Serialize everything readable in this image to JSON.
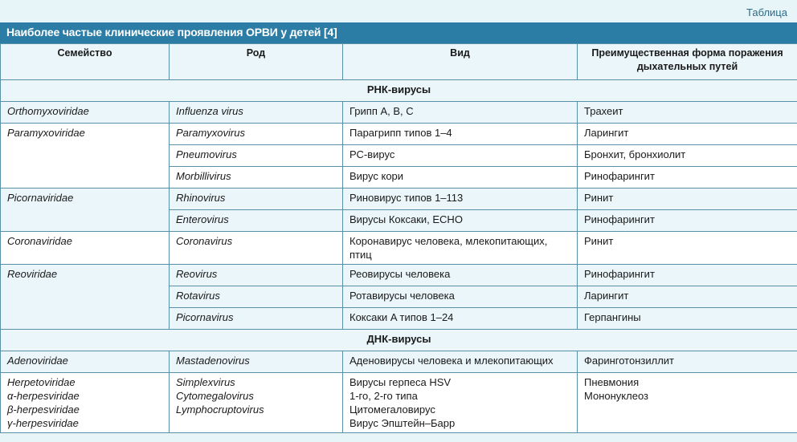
{
  "label": "Таблица",
  "title": "Наиболее частые клинические проявления ОРВИ у детей [4]",
  "headers": [
    "Семейство",
    "Род",
    "Вид",
    "Преимущественная форма поражения дыхательных путей"
  ],
  "sections": {
    "rna": "РНК-вирусы",
    "dna": "ДНК-вирусы"
  },
  "rows": {
    "r1": {
      "family": "Orthomyxoviridae",
      "genus": "Influenza virus",
      "species": "Грипп A, B, C",
      "form": "Трахеит"
    },
    "r2": {
      "family": "Paramyxoviridae",
      "genus": "Paramyxovirus",
      "species": "Парагрипп типов 1–4",
      "form": "Ларингит"
    },
    "r3": {
      "genus": "Pneumovirus",
      "species": "РС-вирус",
      "form": "Бронхит, бронхиолит"
    },
    "r4": {
      "genus": "Morbillivirus",
      "species": "Вирус кори",
      "form": "Ринофарингит"
    },
    "r5": {
      "family": "Picornaviridae",
      "genus": "Rhinovirus",
      "species": "Риновирус типов 1–113",
      "form": "Ринит"
    },
    "r6": {
      "genus": "Enterovirus",
      "species": "Вирусы Коксаки, ECHO",
      "form": "Ринофарингит"
    },
    "r7": {
      "family": "Coronaviridae",
      "genus": "Coronavirus",
      "species": "Коронавирус человека, млекопитающих, птиц",
      "form": "Ринит"
    },
    "r8": {
      "family": "Reoviridae",
      "genus": "Reovirus",
      "species": "Реовирусы человека",
      "form": "Ринофарингит"
    },
    "r9": {
      "genus": "Rotavirus",
      "species": "Ротавирусы человека",
      "form": "Ларингит"
    },
    "r10": {
      "genus": "Picornavirus",
      "species": "Коксаки A типов 1–24",
      "form": "Герпангины"
    },
    "r11": {
      "family": "Adenoviridae",
      "genus": "Mastadenovirus",
      "species": "Аденовирусы человека и млекопитающих",
      "form": "Фаринготонзиллит"
    },
    "r12": {
      "family": [
        "Herpetoviridae",
        "α-herpesviridae",
        "β-herpesviridae",
        "γ-herpesviridae"
      ],
      "genus": [
        "Simplexvirus",
        "Cytomegalovirus",
        "Lymphocruptovirus"
      ],
      "species": [
        "Вирусы герпеса HSV",
        "1-го, 2-го типа",
        "Цитомегаловирус",
        "Вирус Эпштейн–Барр"
      ],
      "form": [
        "Пневмония",
        "Мононуклеоз"
      ]
    }
  }
}
